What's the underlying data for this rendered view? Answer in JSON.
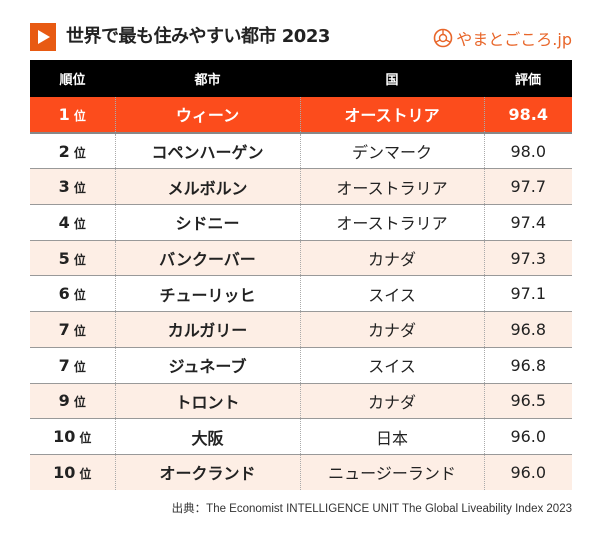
{
  "header": {
    "title": "世界で最も住みやすい都市 2023",
    "logo": "やまとごころ.jp",
    "accent": "#fc4c1c"
  },
  "chart_data": {
    "type": "table",
    "columns": [
      "順位",
      "都市",
      "国",
      "評価"
    ],
    "rows": [
      {
        "rank": "1",
        "unit": "位",
        "city": "ウィーン",
        "country": "オーストリア",
        "score": "98.4"
      },
      {
        "rank": "2",
        "unit": "位",
        "city": "コペンハーゲン",
        "country": "デンマーク",
        "score": "98.0"
      },
      {
        "rank": "3",
        "unit": "位",
        "city": "メルボルン",
        "country": "オーストラリア",
        "score": "97.7"
      },
      {
        "rank": "4",
        "unit": "位",
        "city": "シドニー",
        "country": "オーストラリア",
        "score": "97.4"
      },
      {
        "rank": "5",
        "unit": "位",
        "city": "バンクーバー",
        "country": "カナダ",
        "score": "97.3"
      },
      {
        "rank": "6",
        "unit": "位",
        "city": "チューリッヒ",
        "country": "スイス",
        "score": "97.1"
      },
      {
        "rank": "7",
        "unit": "位",
        "city": "カルガリー",
        "country": "カナダ",
        "score": "96.8"
      },
      {
        "rank": "7",
        "unit": "位",
        "city": "ジュネーブ",
        "country": "スイス",
        "score": "96.8"
      },
      {
        "rank": "9",
        "unit": "位",
        "city": "トロント",
        "country": "カナダ",
        "score": "96.5"
      },
      {
        "rank": "10",
        "unit": "位",
        "city": "大阪",
        "country": "日本",
        "score": "96.0"
      },
      {
        "rank": "10",
        "unit": "位",
        "city": "オークランド",
        "country": "ニュージーランド",
        "score": "96.0"
      }
    ]
  },
  "footer": {
    "source": "出典：The Economist INTELLIGENCE UNIT The Global Liveability Index 2023"
  }
}
